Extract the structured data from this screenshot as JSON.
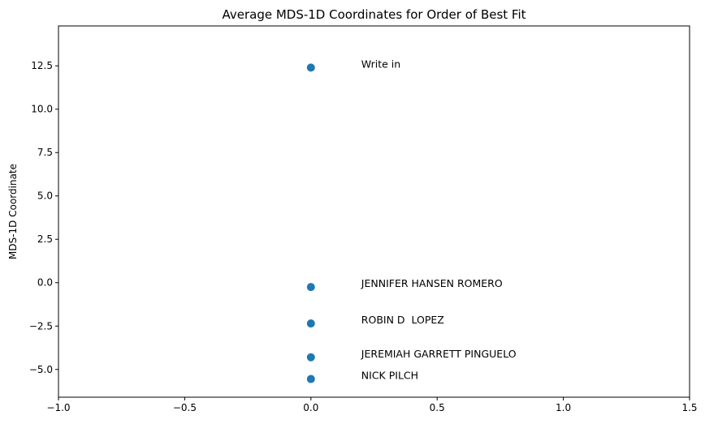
{
  "chart_data": {
    "type": "scatter",
    "title": "Average MDS-1D Coordinates for Order of Best Fit",
    "xlabel": "",
    "ylabel": "MDS-1D Coordinate",
    "xlim": [
      -1.0,
      1.5
    ],
    "ylim": [
      -6.6,
      14.8
    ],
    "x_ticks": [
      -1.0,
      -0.5,
      0.0,
      0.5,
      1.0,
      1.5
    ],
    "x_tick_labels": [
      "−1.0",
      "−0.5",
      "0.0",
      "0.5",
      "1.0",
      "1.5"
    ],
    "y_ticks": [
      -5.0,
      -2.5,
      0.0,
      2.5,
      5.0,
      7.5,
      10.0,
      12.5
    ],
    "y_tick_labels": [
      "−5.0",
      "−2.5",
      "0.0",
      "2.5",
      "5.0",
      "7.5",
      "10.0",
      "12.5"
    ],
    "grid": false,
    "marker_color": "#1f77b4",
    "points": [
      {
        "label": "Write in",
        "x": 0.0,
        "y": 12.4
      },
      {
        "label": "JENNIFER HANSEN ROMERO",
        "x": 0.0,
        "y": -0.25
      },
      {
        "label": "ROBIN D  LOPEZ",
        "x": 0.0,
        "y": -2.35
      },
      {
        "label": "JEREMIAH GARRETT PINGUELO",
        "x": 0.0,
        "y": -4.3
      },
      {
        "label": "NICK PILCH",
        "x": 0.0,
        "y": -5.55
      }
    ]
  }
}
